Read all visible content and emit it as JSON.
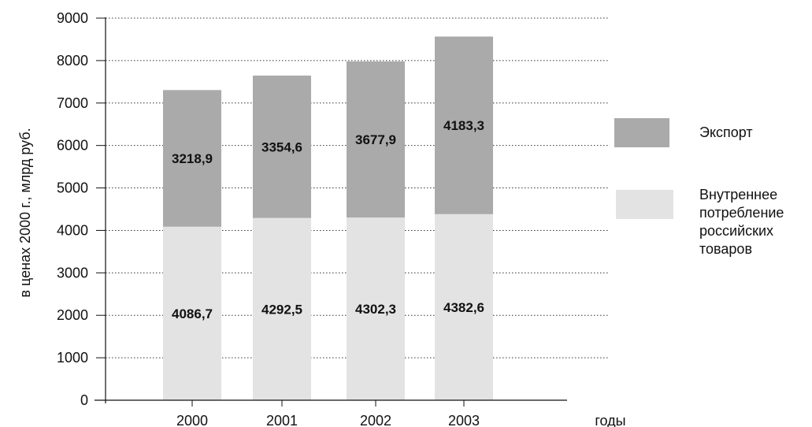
{
  "chart_data": {
    "type": "bar",
    "stacked": true,
    "categories": [
      "2000",
      "2001",
      "2002",
      "2003"
    ],
    "series": [
      {
        "name": "Внутреннее потребление российских товаров",
        "name_lines": [
          "Внутреннее",
          "потребление",
          "российских",
          "товаров"
        ],
        "values": [
          4086.7,
          4292.5,
          4302.3,
          4382.6
        ],
        "labels": [
          "4086,7",
          "4292,5",
          "4302,3",
          "4382,6"
        ],
        "color": "#e3e3e3"
      },
      {
        "name": "Экспорт",
        "name_lines": [
          "Экспорт"
        ],
        "values": [
          3218.9,
          3354.6,
          3677.9,
          4183.3
        ],
        "labels": [
          "3218,9",
          "3354,6",
          "3677,9",
          "4183,3"
        ],
        "color": "#aaaaaa"
      }
    ],
    "ylabel": "в ценах 2000 г., млрд руб.",
    "xlabel": "годы",
    "ylim": [
      0,
      9000
    ],
    "yticks": [
      0,
      1000,
      2000,
      3000,
      4000,
      5000,
      6000,
      7000,
      8000,
      9000
    ],
    "grid": true,
    "grid_style": "dotted",
    "legend_position": "right"
  }
}
